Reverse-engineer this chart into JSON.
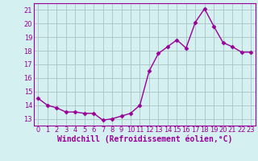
{
  "x": [
    0,
    1,
    2,
    3,
    4,
    5,
    6,
    7,
    8,
    9,
    10,
    11,
    12,
    13,
    14,
    15,
    16,
    17,
    18,
    19,
    20,
    21,
    22,
    23
  ],
  "y": [
    14.5,
    14.0,
    13.8,
    13.5,
    13.5,
    13.4,
    13.4,
    12.9,
    13.0,
    13.2,
    13.4,
    14.0,
    16.5,
    17.8,
    18.3,
    18.8,
    18.2,
    20.1,
    21.1,
    19.8,
    18.6,
    18.3,
    17.9,
    17.9
  ],
  "line_color": "#990099",
  "marker": "D",
  "marker_size": 2.5,
  "linewidth": 1.0,
  "bg_color": "#d4f0f0",
  "grid_color": "#b0c8c8",
  "xlabel": "Windchill (Refroidissement éolien,°C)",
  "xlabel_fontsize": 7.0,
  "xlabel_color": "#990099",
  "tick_color": "#990099",
  "tick_fontsize": 6.0,
  "ylim": [
    12.5,
    21.5
  ],
  "xlim": [
    -0.5,
    23.5
  ],
  "yticks": [
    13,
    14,
    15,
    16,
    17,
    18,
    19,
    20,
    21
  ],
  "xticks": [
    0,
    1,
    2,
    3,
    4,
    5,
    6,
    7,
    8,
    9,
    10,
    11,
    12,
    13,
    14,
    15,
    16,
    17,
    18,
    19,
    20,
    21,
    22,
    23
  ],
  "spine_color": "#990099"
}
